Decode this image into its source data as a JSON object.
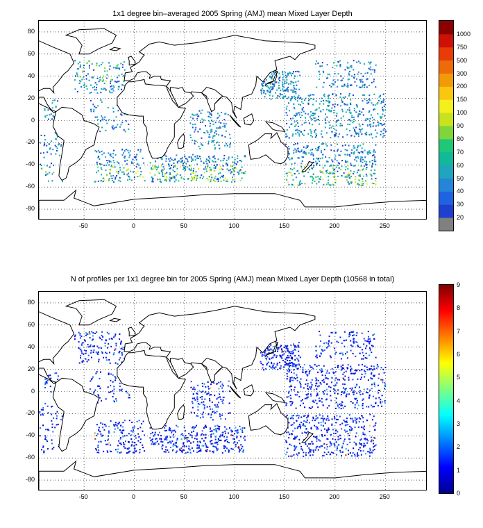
{
  "maps": [
    {
      "id": "mld",
      "title": "1x1 degree bin–averaged 2005 Spring (AMJ) mean Mixed Layer Depth",
      "colorbar_type": "discrete",
      "colorbar_labels": [
        "20",
        "30",
        "40",
        "50",
        "60",
        "70",
        "80",
        "90",
        "100",
        "150",
        "200",
        "300",
        "500",
        "750",
        "1000"
      ],
      "colorbar_colors": [
        "#808080",
        "#1f3fcf",
        "#1e64e0",
        "#2585d9",
        "#1ea5c0",
        "#12b89a",
        "#1ec878",
        "#7ed63a",
        "#c8e21e",
        "#f3f01c",
        "#f9c70f",
        "#f39a0b",
        "#ef6a08",
        "#e83b06",
        "#cf1006",
        "#8b0000"
      ],
      "data_palette": [
        "#1f3fcf",
        "#1e64e0",
        "#2585d9",
        "#1ea5c0",
        "#12b89a",
        "#1ec878",
        "#7ed63a",
        "#c8e21e",
        "#f3f01c",
        "#f9c70f",
        "#f39a0b"
      ]
    },
    {
      "id": "nprof",
      "title": "N of profiles per 1x1 degree bin for 2005 Spring (AMJ) mean Mixed Layer Depth  (10568 in total)",
      "colorbar_type": "continuous",
      "colorbar_labels": [
        "0",
        "1",
        "2",
        "3",
        "4",
        "5",
        "6",
        "7",
        "8",
        "9"
      ],
      "data_palette": [
        "#0000c8",
        "#0a1ee6",
        "#1f4fff",
        "#2a7cff",
        "#1ea8f0",
        "#20d0d8",
        "#f3d010",
        "#d41b1b"
      ]
    }
  ],
  "axes": {
    "x_ticks": [
      "-50",
      "0",
      "50",
      "100",
      "150",
      "200",
      "250"
    ],
    "x_range": [
      -95,
      292
    ],
    "y_ticks": [
      "80",
      "60",
      "40",
      "20",
      "0",
      "-20",
      "-40",
      "-60",
      "-80"
    ],
    "y_range": [
      -90,
      90
    ],
    "grid": "dotted"
  }
}
